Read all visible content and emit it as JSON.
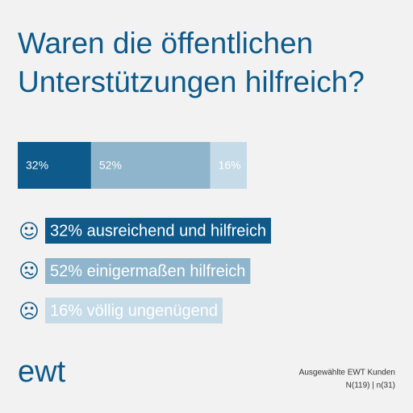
{
  "chart_data": {
    "type": "stacked-bar",
    "title": "Waren die öffentlichen Unterstützungen hilfreich?",
    "series": [
      {
        "name": "32% ausreichend und hilfreich",
        "color": "#0e5a8a",
        "values": [
          32
        ],
        "value_labels": [
          "32%"
        ]
      },
      {
        "name": "52% einigermaßen hilfreich",
        "color": "#8fb5cc",
        "values": [
          52
        ],
        "value_labels": [
          "52%"
        ]
      },
      {
        "name": "16% völlig ungenügend",
        "color": "#c6dbe8",
        "values": [
          16
        ],
        "value_labels": [
          "16%"
        ]
      }
    ],
    "logo": "ewt",
    "note": [
      "Ausgewählte EWT Kunden",
      "N(119) | n(31)"
    ]
  }
}
